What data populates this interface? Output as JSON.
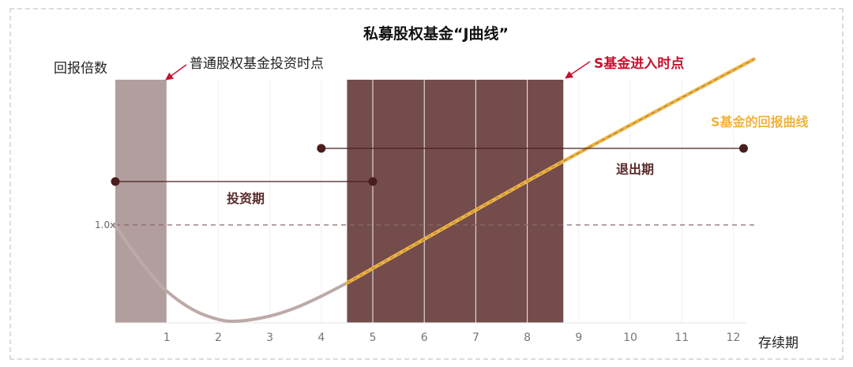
{
  "chart_data": {
    "type": "line",
    "title": "私募股权基金“J曲线”",
    "ylabel": "回报倍数",
    "xlabel": "存续期",
    "x_ticks": [
      "1",
      "2",
      "3",
      "4",
      "5",
      "6",
      "7",
      "8",
      "9",
      "10",
      "11",
      "12"
    ],
    "y_reference": {
      "label": "1.0x",
      "value": 1.0
    },
    "xlim": [
      0,
      12.4
    ],
    "ylim": [
      0.2,
      1.8
    ],
    "series": [
      {
        "name": "",
        "color": "#bcaaa8",
        "x": [
          0,
          0.3,
          0.7,
          1.0,
          1.5,
          2.0,
          2.4,
          3.0,
          3.5,
          4.0,
          4.5
        ],
        "y": [
          1.0,
          0.86,
          0.7,
          0.6,
          0.49,
          0.43,
          0.42,
          0.45,
          0.5,
          0.57,
          0.65
        ]
      },
      {
        "name": "S基金的回报曲线",
        "color": "#f0b43c",
        "x": [
          4.5,
          8.5,
          12.4
        ],
        "y": [
          0.65,
          1.35,
          2.0
        ]
      }
    ],
    "periods": [
      {
        "label": "投资期",
        "from": 0,
        "to": 5
      },
      {
        "label": "退出期",
        "from": 4,
        "to": 12.2
      }
    ],
    "shaded_regions": [
      {
        "from": 0,
        "to": 1,
        "color": "#b29e9e"
      },
      {
        "from": 4.5,
        "to": 8.7,
        "color": "#744c4c"
      }
    ],
    "annotations": [
      {
        "text": "普通股权基金投资时点",
        "color": "#222222"
      },
      {
        "text": "S基金进入时点",
        "color": "#c8102e"
      },
      {
        "text": "S基金的回报曲线",
        "color": "#f0b43c"
      }
    ]
  }
}
